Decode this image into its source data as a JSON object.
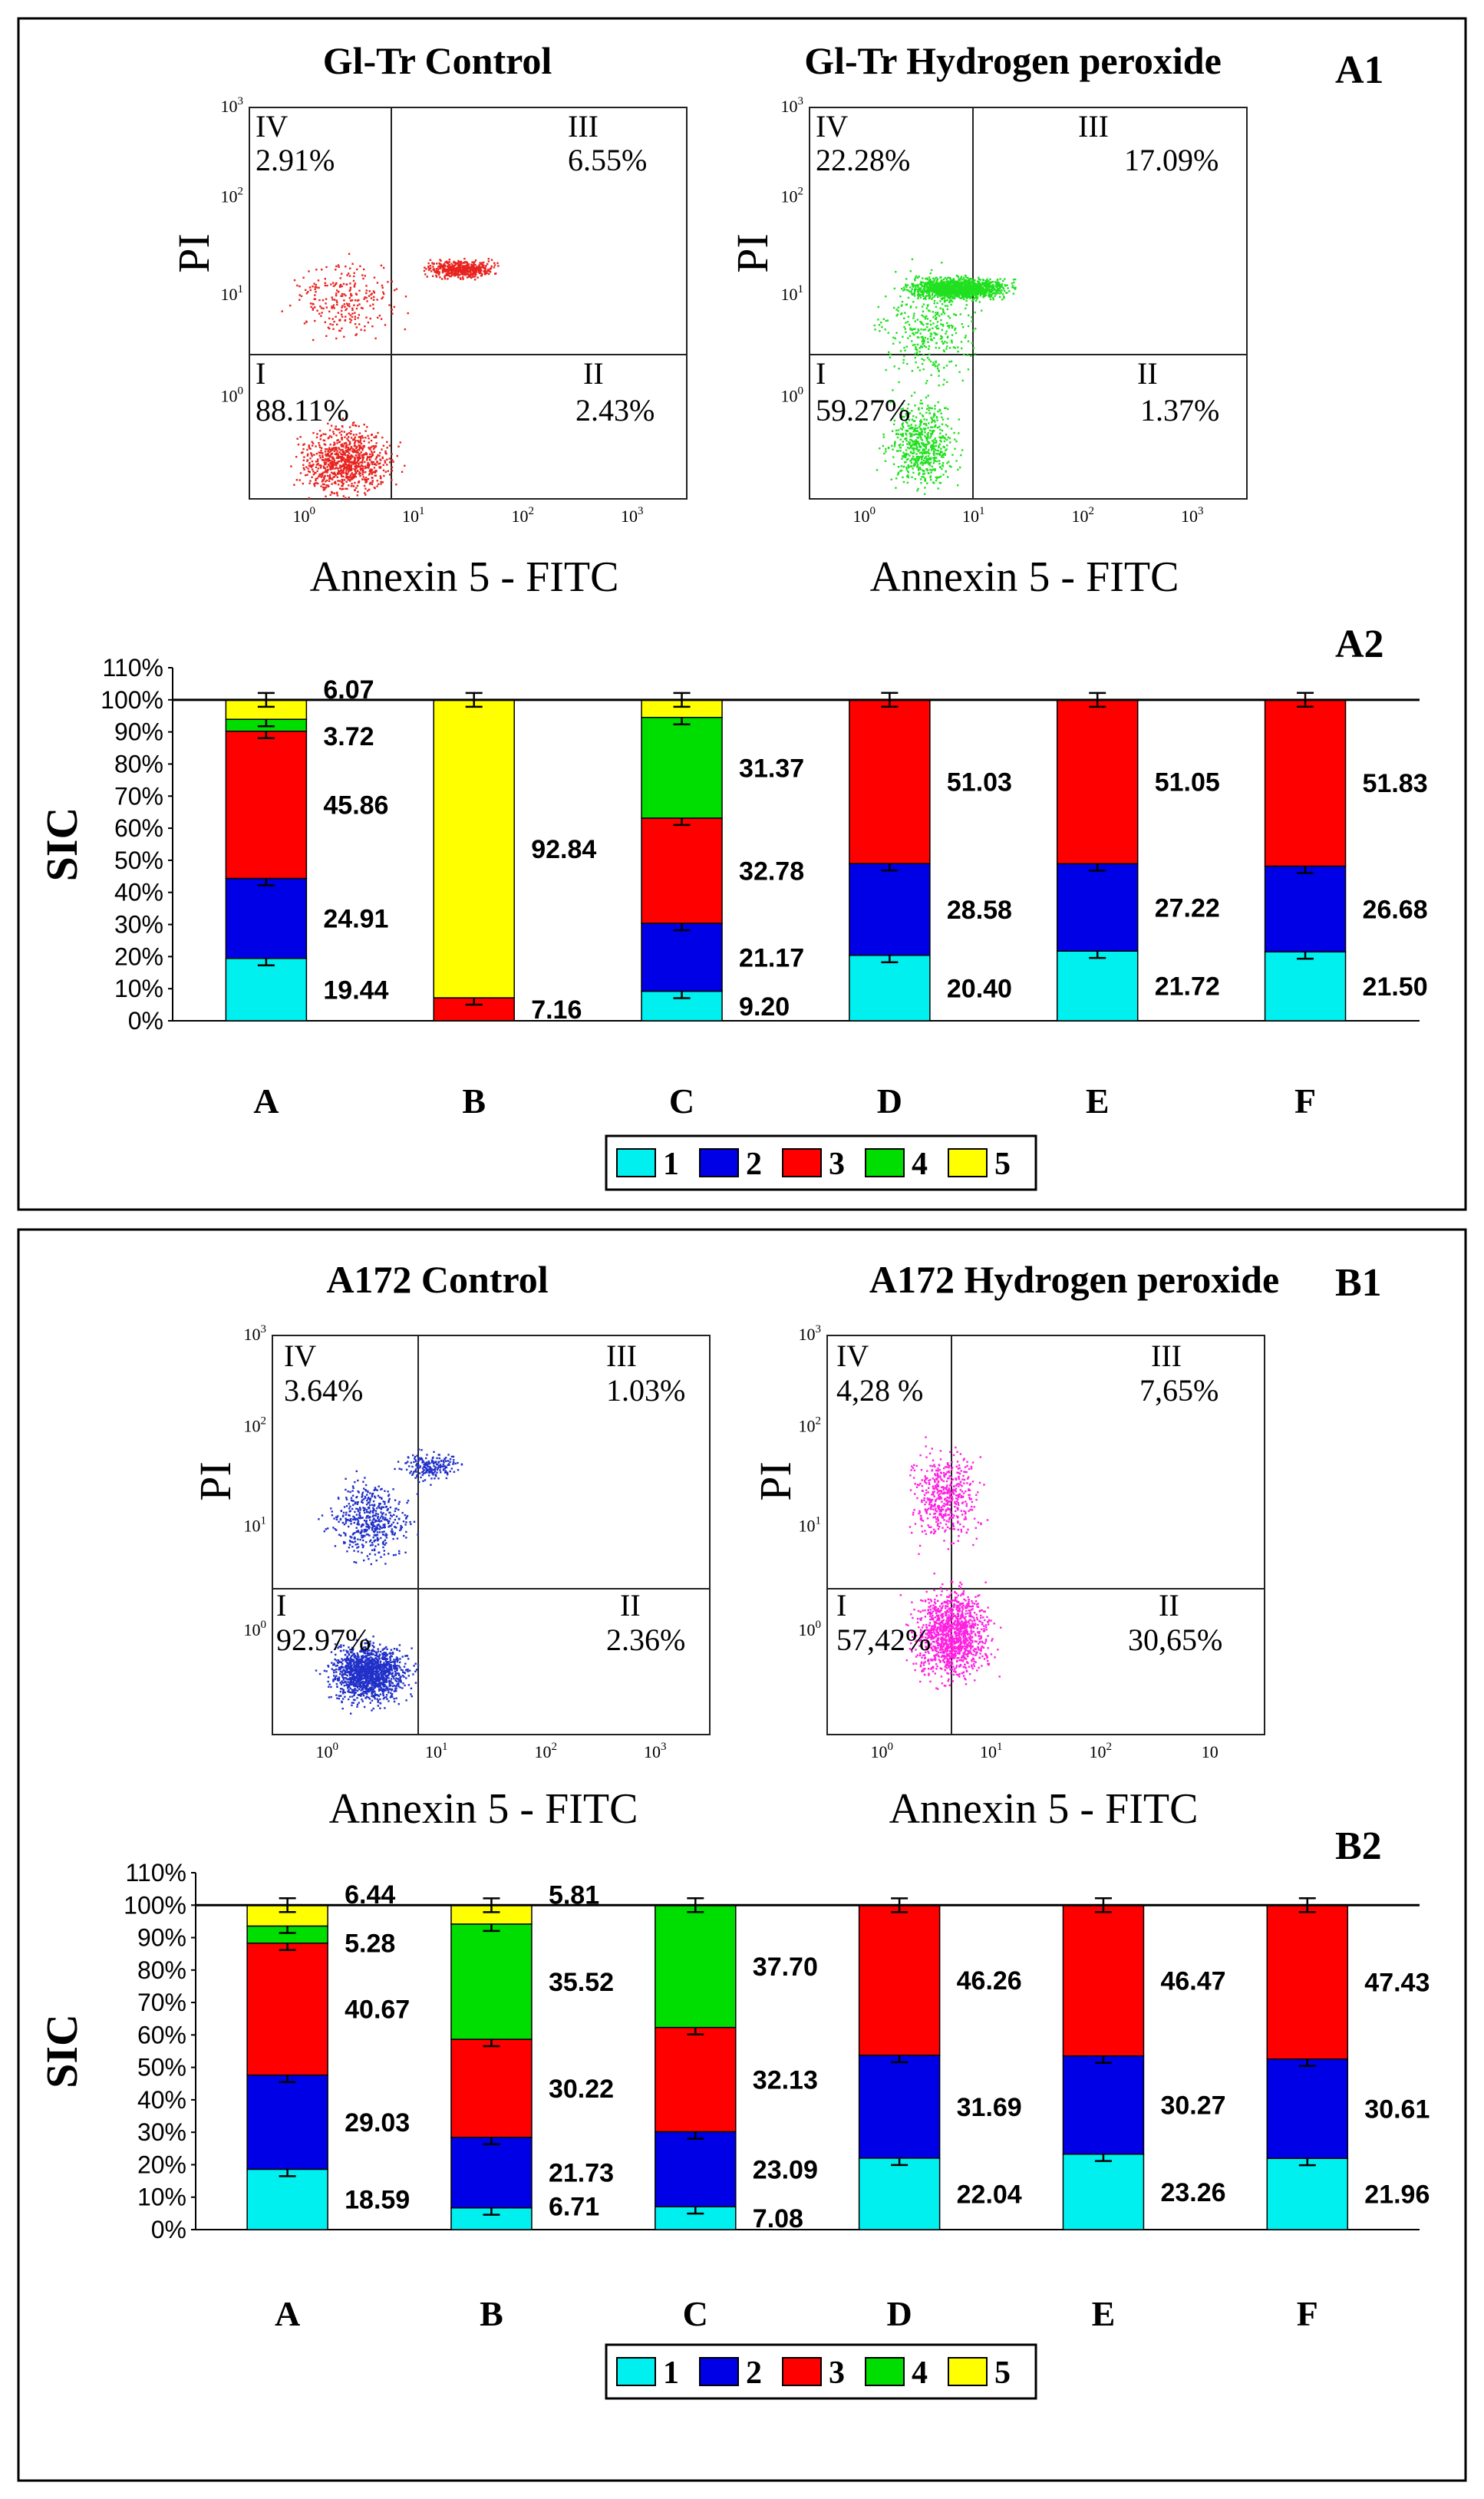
{
  "colors": {
    "c1": "#00f0f0",
    "c2": "#0000e6",
    "c3": "#ff0000",
    "c4": "#00dd00",
    "c5": "#ffff00",
    "red_dots": "#e8231f",
    "green_dots": "#20e020",
    "blue_dots": "#2030c8",
    "magenta_dots": "#ff20e0"
  },
  "panel_a": {
    "label_top": "A1",
    "label_bar": "A2",
    "flow_left": {
      "title": "Gl-Tr Control",
      "q_iv": "IV",
      "q_iii": "III",
      "q_i": "I",
      "q_ii": "II",
      "v_iv": "2.91%",
      "v_iii": "6.55%",
      "v_i": "88.11%",
      "v_ii": "2.43%"
    },
    "flow_right": {
      "title": "Gl-Tr Hydrogen peroxide",
      "q_iv": "IV",
      "q_iii": "III",
      "q_i": "I",
      "q_ii": "II",
      "v_iv": "22.28%",
      "v_iii": "17.09%",
      "v_i": "59.27%",
      "v_ii": "1.37%"
    },
    "ylabel": "PI",
    "xlabel": "Annexin 5 -  FITC",
    "xlabel_right": "Annexin 5 - FITC",
    "ticks": {
      "t3": "10",
      "t2": "10",
      "t1": "10",
      "t0": "10",
      "e3": "3",
      "e2": "2",
      "e1": "1",
      "e0": "0"
    }
  },
  "panel_b": {
    "label_top": "B1",
    "label_bar": "B2",
    "flow_left": {
      "title": "A172 Control",
      "q_iv": "IV",
      "q_iii": "III",
      "q_i": "I",
      "q_ii": "II",
      "v_iv": "3.64%",
      "v_iii": "1.03%",
      "v_i": "92.97%",
      "v_ii": "2.36%"
    },
    "flow_right": {
      "title": "A172 Hydrogen peroxide",
      "q_iv": "IV",
      "q_iii": "III",
      "q_i": "I",
      "q_ii": "II",
      "v_iv": "4,28 %",
      "v_iii": "7,65%",
      "v_i": "57,42%",
      "v_ii": "30,65%"
    },
    "ylabel": "PI",
    "xlabel": "Annexin 5 - FITC",
    "xlabel_right": "Annexin 5 - FITC",
    "last_tick_right": "10"
  },
  "chart_data": [
    {
      "type": "bar",
      "stacked": true,
      "title": "A2",
      "ylabel": "SIC",
      "yticks": [
        "0%",
        "10%",
        "20%",
        "30%",
        "40%",
        "50%",
        "60%",
        "70%",
        "80%",
        "90%",
        "100%",
        "110%"
      ],
      "ylim": [
        0,
        110
      ],
      "reference_line": 100,
      "categories": [
        "A",
        "B",
        "C",
        "D",
        "E",
        "F"
      ],
      "series": [
        {
          "name": "1",
          "values": [
            19.44,
            0,
            9.2,
            20.4,
            21.72,
            21.5
          ]
        },
        {
          "name": "2",
          "values": [
            24.91,
            0,
            21.17,
            28.58,
            27.22,
            26.68
          ]
        },
        {
          "name": "3",
          "values": [
            45.86,
            7.16,
            32.78,
            51.03,
            51.05,
            51.83
          ]
        },
        {
          "name": "4",
          "values": [
            3.72,
            0,
            31.37,
            0,
            0,
            0
          ]
        },
        {
          "name": "5",
          "values": [
            6.07,
            92.84,
            5.48,
            0,
            0,
            0
          ]
        }
      ],
      "data_labels": [
        [
          "19.44",
          "24.91",
          "45.86",
          "3.72",
          "6.07"
        ],
        [
          "7.16",
          "92.84"
        ],
        [
          "9.20",
          "21.17",
          "32.78",
          "31.37"
        ],
        [
          "20.40",
          "28.58",
          "51.03"
        ],
        [
          "21.72",
          "27.22",
          "51.05"
        ],
        [
          "21.50",
          "26.68",
          "51.83"
        ]
      ],
      "legend": [
        "1",
        "2",
        "3",
        "4",
        "5"
      ]
    },
    {
      "type": "bar",
      "stacked": true,
      "title": "B2",
      "ylabel": "SIC",
      "yticks": [
        "0%",
        "10%",
        "20%",
        "30%",
        "40%",
        "50%",
        "60%",
        "70%",
        "80%",
        "90%",
        "100%",
        "110%"
      ],
      "ylim": [
        0,
        110
      ],
      "reference_line": 100,
      "categories": [
        "A",
        "B",
        "C",
        "D",
        "E",
        "F"
      ],
      "series": [
        {
          "name": "1",
          "values": [
            18.59,
            6.71,
            7.08,
            22.04,
            23.26,
            21.96
          ]
        },
        {
          "name": "2",
          "values": [
            29.03,
            21.73,
            23.09,
            31.69,
            30.27,
            30.61
          ]
        },
        {
          "name": "3",
          "values": [
            40.67,
            30.22,
            32.13,
            46.26,
            46.47,
            47.43
          ]
        },
        {
          "name": "4",
          "values": [
            5.28,
            35.52,
            37.7,
            0,
            0,
            0
          ]
        },
        {
          "name": "5",
          "values": [
            6.44,
            5.81,
            0,
            0,
            0,
            0
          ]
        }
      ],
      "data_labels": [
        [
          "18.59",
          "29.03",
          "40.67",
          "5.28",
          "6.44"
        ],
        [
          "6.71",
          "21.73",
          "30.22",
          "35.52",
          "5.81"
        ],
        [
          "7.08",
          "23.09",
          "32.13",
          "37.70"
        ],
        [
          "22.04",
          "31.69",
          "46.26"
        ],
        [
          "23.26",
          "30.27",
          "46.47"
        ],
        [
          "21.96",
          "30.61",
          "47.43"
        ]
      ],
      "legend": [
        "1",
        "2",
        "3",
        "4",
        "5"
      ]
    }
  ]
}
